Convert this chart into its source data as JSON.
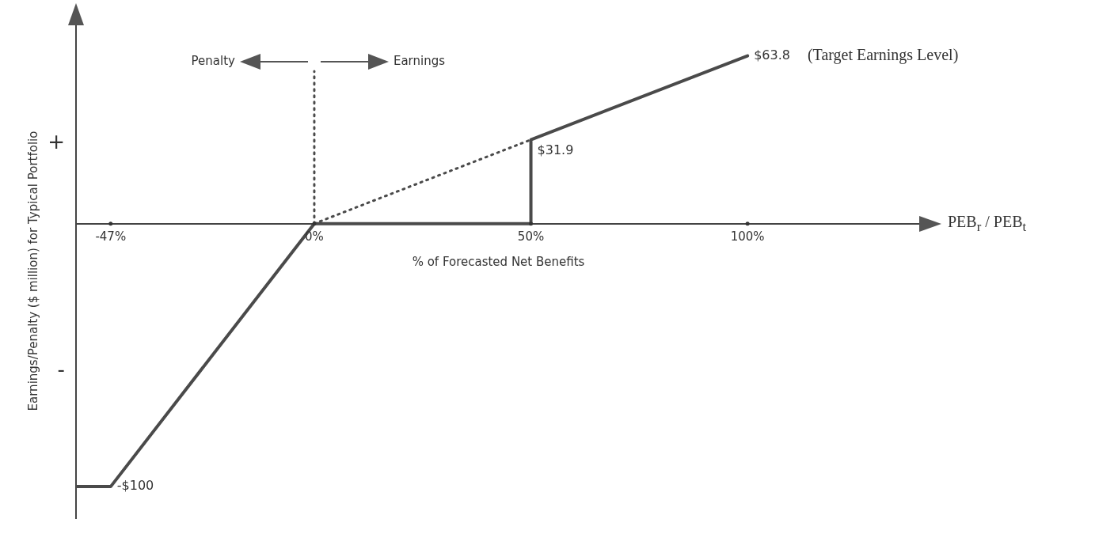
{
  "chart_data": {
    "type": "line",
    "xlabel": "% of Forecasted Net Benefits",
    "ylabel": "Earnings/Penalty ($ million) for Typical Portfolio",
    "xlim": [
      -55,
      140
    ],
    "ylim": [
      -112,
      76
    ],
    "xticks": [
      {
        "value": -47,
        "label": "-47%"
      },
      {
        "value": 0,
        "label": "0%"
      },
      {
        "value": 50,
        "label": "50%"
      },
      {
        "value": 100,
        "label": "100%"
      }
    ],
    "grid": false,
    "legend": false,
    "marker": "none",
    "series": [
      {
        "color": "#4a4a4a",
        "line_style": "solid",
        "x": [
          -55,
          -47,
          0,
          50,
          50,
          100
        ],
        "values": [
          -100,
          -100,
          0,
          0,
          31.9,
          63.8
        ],
        "value_labels": [
          null,
          "-$100",
          null,
          null,
          "$31.9",
          "$63.8"
        ]
      },
      {
        "color": "#4a4a4a",
        "line_style": "dotted",
        "x": [
          0,
          50
        ],
        "values": [
          0,
          31.9
        ]
      }
    ],
    "ref_lines": [
      {
        "axis": "x",
        "value": 0,
        "line_style": "dotted",
        "color": "#4a4a4a"
      }
    ],
    "annotations": [
      "Penalty",
      "Earnings",
      "(Target Earnings Level)",
      "PEB$_{r}$ / PEB$_{t}$",
      "+",
      "-"
    ]
  }
}
